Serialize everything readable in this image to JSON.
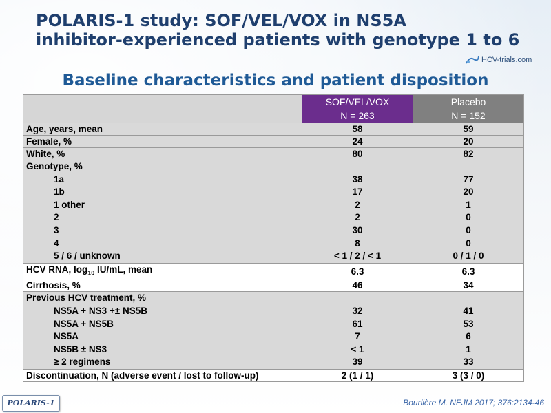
{
  "title": {
    "line1": "POLARIS-1 study: SOF/VEL/VOX in NS5A",
    "line2": "inhibitor-experienced patients with genotype 1 to 6"
  },
  "logo": {
    "text": "HCV-trials.com"
  },
  "subtitle": "Baseline characteristics and patient disposition",
  "table": {
    "header": {
      "sof_line1": "SOF/VEL/VOX",
      "sof_line2": "N = 263",
      "placebo_line1": "Placebo",
      "placebo_line2": "N = 152"
    },
    "age": {
      "label": "Age, years, mean",
      "sof": "58",
      "placebo": "59"
    },
    "female": {
      "label": "Female, %",
      "sof": "24",
      "placebo": "20"
    },
    "white": {
      "label": "White, %",
      "sof": "80",
      "placebo": "82"
    },
    "genotype": {
      "label": "Genotype, %",
      "rows": [
        {
          "label": "1a",
          "sof": "38",
          "placebo": "77"
        },
        {
          "label": "1b",
          "sof": "17",
          "placebo": "20"
        },
        {
          "label": "1 other",
          "sof": "2",
          "placebo": "1"
        },
        {
          "label": "2",
          "sof": "2",
          "placebo": "0"
        },
        {
          "label": "3",
          "sof": "30",
          "placebo": "0"
        },
        {
          "label": "4",
          "sof": "8",
          "placebo": "0"
        },
        {
          "label": "5 / 6 / unknown",
          "sof": "< 1 / 2 / < 1",
          "placebo": "0 / 1 / 0"
        }
      ]
    },
    "hcv_rna": {
      "label_prefix": "HCV RNA, log",
      "label_sub": "10",
      "label_suffix": " IU/mL, mean",
      "sof": "6.3",
      "placebo": "6.3"
    },
    "cirrhosis": {
      "label": "Cirrhosis, %",
      "sof": "46",
      "placebo": "34"
    },
    "previous": {
      "label": "Previous HCV treatment, %",
      "rows": [
        {
          "label": "NS5A + NS3 +± NS5B",
          "sof": "32",
          "placebo": "41"
        },
        {
          "label": "NS5A + NS5B",
          "sof": "61",
          "placebo": "53"
        },
        {
          "label": "NS5A",
          "sof": "7",
          "placebo": "6"
        },
        {
          "label": "NS5B ± NS3",
          "sof": "< 1",
          "placebo": "1"
        },
        {
          "label": "≥ 2 regimens",
          "sof": "39",
          "placebo": "33"
        }
      ]
    },
    "discontinuation": {
      "label": "Discontinuation, N (adverse event / lost to follow-up)",
      "sof": "2 (1 / 1)",
      "placebo": "3 (3 / 0)"
    }
  },
  "footer": {
    "badge": "POLARIS-1",
    "reference": "Bourlière M. NEJM 2017; 376:2134-46"
  },
  "colors": {
    "title": "#1f3f6e",
    "subtitle": "#1f5a96",
    "sof_header": "#6b2d8d",
    "placebo_header": "#808080",
    "row_shade": "#d9d9d9"
  }
}
